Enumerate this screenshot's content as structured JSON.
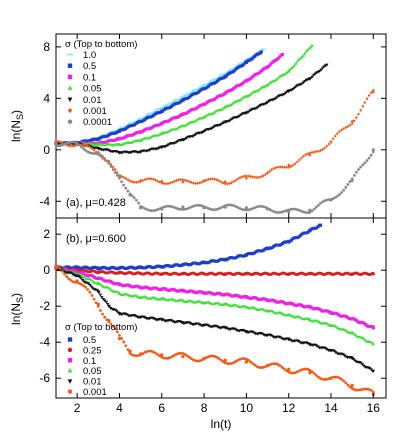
{
  "xlabel": "ln(t)",
  "x_ticks": [
    2,
    4,
    6,
    8,
    10,
    12,
    14,
    16
  ],
  "colors": {
    "cyan": "#7fe7f2",
    "blue": "#1f3fc7",
    "magenta": "#ee22e6",
    "green": "#3fe03a",
    "black": "#111111",
    "orange": "#f45a16",
    "gray": "#8a8a8a",
    "red": "#d91e1e"
  },
  "chart_data": [
    {
      "type": "scatter",
      "panel_label": "(a), μ=0.428",
      "ylabel": "ln(N_S)",
      "xlim": [
        1,
        16.6
      ],
      "ylim": [
        -5.3,
        9.0
      ],
      "y_ticks": [
        8,
        4,
        0,
        -4
      ],
      "grid": false,
      "legend_title": "σ (Top to bottom)",
      "legend_position": "top-left",
      "series": [
        {
          "name": "1.0",
          "marker": "dash",
          "color_key": "cyan",
          "x": [
            1,
            2,
            3,
            4,
            5,
            6,
            7,
            8,
            9,
            10,
            10.8
          ],
          "y": [
            0.5,
            0.6,
            0.95,
            1.6,
            2.4,
            3.25,
            4.1,
            5.0,
            5.9,
            6.95,
            7.8
          ]
        },
        {
          "name": "0.5",
          "marker": "square",
          "color_key": "blue",
          "x": [
            1,
            2,
            3,
            4,
            5,
            6,
            7,
            8,
            9,
            10,
            10.7
          ],
          "y": [
            0.5,
            0.55,
            0.85,
            1.45,
            2.2,
            3.0,
            3.85,
            4.75,
            5.7,
            6.8,
            7.6
          ]
        },
        {
          "name": "0.1",
          "marker": "square",
          "color_key": "magenta",
          "x": [
            1,
            2,
            3,
            4,
            5,
            6,
            7,
            8,
            9,
            10,
            11,
            11.7
          ],
          "y": [
            0.5,
            0.5,
            0.5,
            0.85,
            1.4,
            2.05,
            2.75,
            3.55,
            4.4,
            5.35,
            6.45,
            7.4
          ]
        },
        {
          "name": "0.05",
          "marker": "triangle",
          "color_key": "green",
          "x": [
            1,
            2,
            3,
            4,
            5,
            6,
            7,
            8,
            9,
            10,
            11,
            12,
            13.1
          ],
          "y": [
            0.5,
            0.5,
            0.4,
            0.4,
            0.75,
            1.25,
            1.85,
            2.55,
            3.3,
            4.15,
            5.05,
            6.1,
            8.1
          ]
        },
        {
          "name": "0.01",
          "marker": "triangle-down",
          "color_key": "black",
          "x": [
            1,
            2,
            3,
            4,
            5,
            6,
            7,
            8,
            9,
            10,
            11,
            12,
            13,
            13.8
          ],
          "y": [
            0.5,
            0.5,
            0.1,
            -0.2,
            -0.15,
            0.2,
            0.8,
            1.45,
            2.15,
            2.9,
            3.7,
            4.55,
            5.55,
            6.6
          ]
        },
        {
          "name": "0.001",
          "marker": "diamond",
          "color_key": "orange",
          "x": [
            1,
            2,
            3,
            3.5,
            4,
            5,
            6,
            7,
            8,
            9,
            10,
            11,
            12,
            13,
            14,
            15,
            16
          ],
          "y": [
            0.5,
            0.45,
            -0.2,
            -0.9,
            -2.2,
            -2.4,
            -2.45,
            -2.5,
            -2.4,
            -2.5,
            -2.2,
            -1.8,
            -1.2,
            -0.4,
            0.6,
            2.2,
            4.5
          ]
        },
        {
          "name": "0.0001",
          "marker": "circle",
          "color_key": "gray",
          "x": [
            1,
            2,
            3,
            4,
            4.5,
            5,
            6,
            7,
            8,
            9,
            10,
            11,
            12,
            13,
            14,
            15,
            16
          ],
          "y": [
            0.5,
            0.4,
            -0.35,
            -2.0,
            -3.5,
            -4.5,
            -4.6,
            -4.45,
            -4.5,
            -4.45,
            -4.5,
            -4.6,
            -4.8,
            -4.7,
            -3.9,
            -2.4,
            0.0
          ]
        }
      ]
    },
    {
      "type": "scatter",
      "panel_label": "(b), μ=0.600",
      "ylabel": "ln(N_S)",
      "xlim": [
        1,
        16.6
      ],
      "ylim": [
        -7.1,
        2.9
      ],
      "y_ticks": [
        2,
        0,
        -2,
        -4,
        -6
      ],
      "grid": false,
      "legend_title": "σ (Top to bottom)",
      "legend_position": "bottom-left",
      "series": [
        {
          "name": "0.5",
          "marker": "square",
          "color_key": "blue",
          "x": [
            1,
            2,
            3,
            4,
            5,
            6,
            7,
            8,
            9,
            10,
            11,
            12,
            13,
            13.5
          ],
          "y": [
            0.15,
            0.15,
            0.12,
            0.12,
            0.15,
            0.2,
            0.3,
            0.42,
            0.6,
            0.85,
            1.2,
            1.6,
            2.2,
            2.5
          ]
        },
        {
          "name": "0.25",
          "marker": "circle",
          "color_key": "red",
          "x": [
            1,
            2,
            3,
            4,
            5,
            6,
            7,
            8,
            9,
            10,
            11,
            12,
            13,
            14,
            15,
            16
          ],
          "y": [
            0.1,
            0.0,
            -0.1,
            -0.15,
            -0.18,
            -0.2,
            -0.2,
            -0.2,
            -0.2,
            -0.2,
            -0.2,
            -0.2,
            -0.2,
            -0.2,
            -0.2,
            -0.2
          ]
        },
        {
          "name": "0.1",
          "marker": "square",
          "color_key": "magenta",
          "x": [
            1,
            2,
            3,
            4,
            5,
            6,
            7,
            8,
            9,
            10,
            11,
            12,
            13,
            14,
            15,
            16
          ],
          "y": [
            0.1,
            -0.1,
            -0.45,
            -0.8,
            -0.95,
            -1.05,
            -1.15,
            -1.25,
            -1.35,
            -1.5,
            -1.65,
            -1.85,
            -2.05,
            -2.35,
            -2.7,
            -3.2
          ]
        },
        {
          "name": "0.05",
          "marker": "triangle",
          "color_key": "green",
          "x": [
            1,
            2,
            3,
            4,
            5,
            6,
            7,
            8,
            9,
            10,
            11,
            12,
            13,
            14,
            15,
            16
          ],
          "y": [
            0.1,
            -0.2,
            -0.75,
            -1.3,
            -1.5,
            -1.6,
            -1.7,
            -1.8,
            -1.9,
            -2.05,
            -2.25,
            -2.5,
            -2.75,
            -3.05,
            -3.5,
            -4.1
          ]
        },
        {
          "name": "0.01",
          "marker": "triangle-down",
          "color_key": "black",
          "x": [
            1,
            2,
            3,
            3.5,
            4,
            5,
            6,
            7,
            8,
            9,
            10,
            11,
            12,
            13,
            14,
            15,
            16
          ],
          "y": [
            0.1,
            -0.3,
            -1.2,
            -2.0,
            -2.4,
            -2.6,
            -2.75,
            -2.9,
            -3.05,
            -3.2,
            -3.4,
            -3.6,
            -3.85,
            -4.1,
            -4.45,
            -4.9,
            -5.6
          ]
        },
        {
          "name": "0.001",
          "marker": "circle",
          "color_key": "orange",
          "x": [
            1,
            2,
            3,
            3.5,
            4,
            4.5,
            5,
            6,
            7,
            8,
            9,
            10,
            11,
            12,
            13,
            14,
            15,
            16
          ],
          "y": [
            0.1,
            -0.6,
            -1.9,
            -2.8,
            -3.8,
            -4.5,
            -4.65,
            -4.7,
            -4.8,
            -4.9,
            -5.0,
            -5.1,
            -5.3,
            -5.5,
            -5.7,
            -6.0,
            -6.4,
            -6.9
          ]
        }
      ]
    }
  ]
}
